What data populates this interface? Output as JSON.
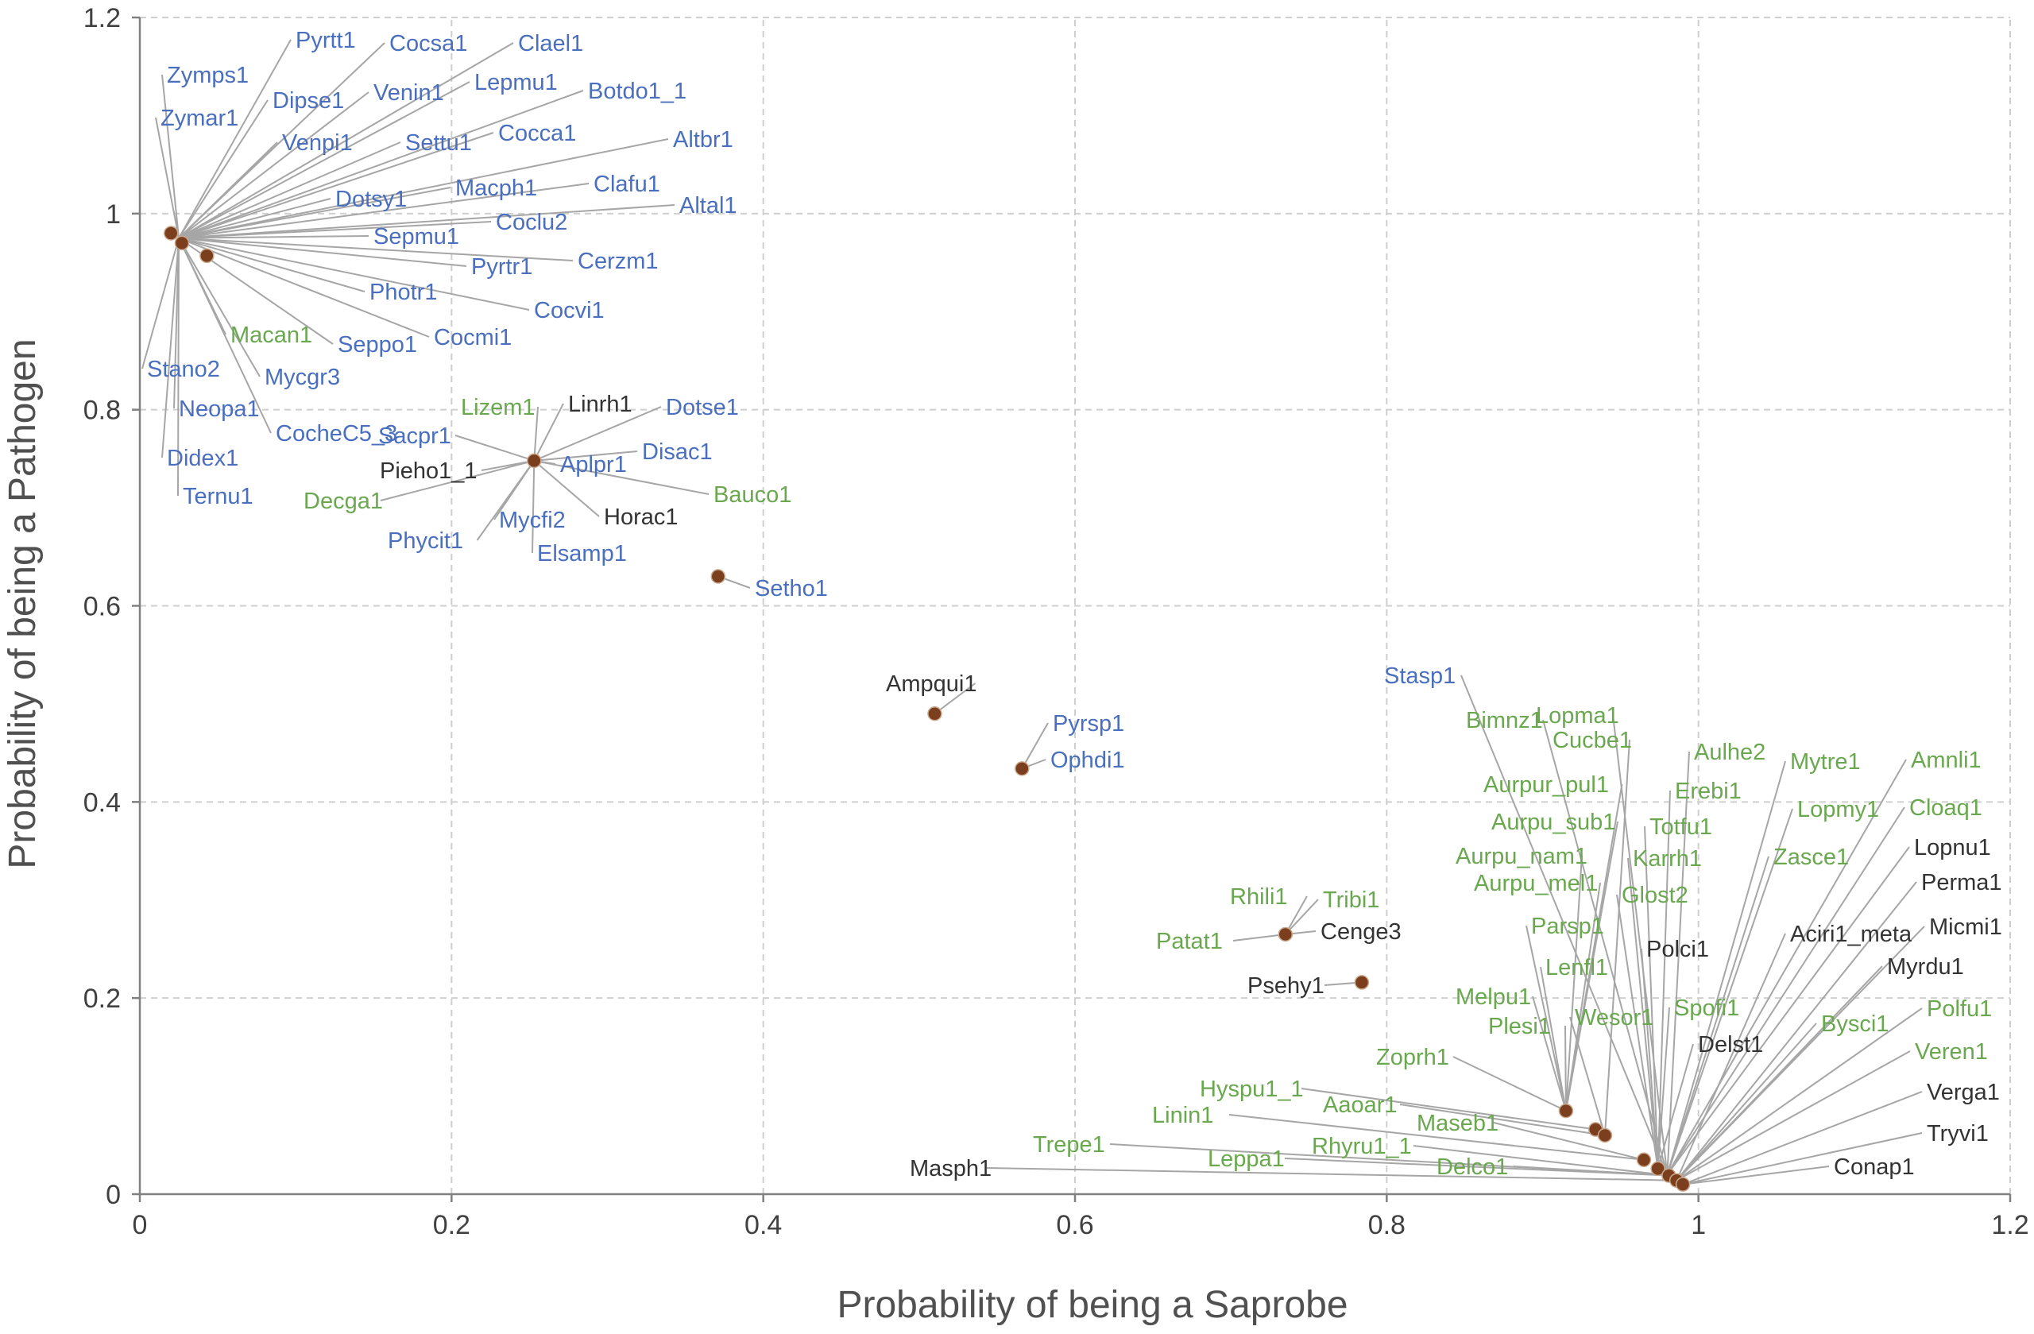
{
  "chart_data": {
    "type": "scatter",
    "xlabel": "Probability of being a Saprobe",
    "ylabel": "Probability of being a Pathogen",
    "xlim": [
      0,
      1.2
    ],
    "ylim": [
      0,
      1.2
    ],
    "xticks": [
      "0",
      "0.2",
      "0.4",
      "0.6",
      "0.8",
      "1",
      "1.2"
    ],
    "yticks": [
      "0",
      "0.2",
      "0.4",
      "0.6",
      "0.8",
      "1",
      "1.2"
    ],
    "grid": true,
    "marker_color": "#7b3f1d",
    "label_colors": {
      "pathogen": "#4a6fbf",
      "saprobe": "#6aa84f",
      "other": "#333333"
    },
    "points": [
      {
        "x": 0.02,
        "y": 0.98
      },
      {
        "x": 0.027,
        "y": 0.97
      },
      {
        "x": 0.043,
        "y": 0.957
      },
      {
        "x": 0.253,
        "y": 0.748
      },
      {
        "x": 0.371,
        "y": 0.63
      },
      {
        "x": 0.51,
        "y": 0.49
      },
      {
        "x": 0.566,
        "y": 0.434
      },
      {
        "x": 0.735,
        "y": 0.265
      },
      {
        "x": 0.784,
        "y": 0.216
      },
      {
        "x": 0.915,
        "y": 0.085
      },
      {
        "x": 0.934,
        "y": 0.066
      },
      {
        "x": 0.94,
        "y": 0.06
      },
      {
        "x": 0.965,
        "y": 0.035
      },
      {
        "x": 0.974,
        "y": 0.026
      },
      {
        "x": 0.981,
        "y": 0.019
      },
      {
        "x": 0.986,
        "y": 0.014
      },
      {
        "x": 0.99,
        "y": 0.01
      }
    ],
    "labels": [
      {
        "text": "Pyrtt1",
        "group": "pathogen",
        "x": 0.025,
        "y": 0.975
      },
      {
        "text": "Cocsa1",
        "group": "pathogen",
        "x": 0.025,
        "y": 0.975
      },
      {
        "text": "Clael1",
        "group": "pathogen",
        "x": 0.025,
        "y": 0.975
      },
      {
        "text": "Zymps1",
        "group": "pathogen",
        "x": 0.025,
        "y": 0.975
      },
      {
        "text": "Dipse1",
        "group": "pathogen",
        "x": 0.025,
        "y": 0.975
      },
      {
        "text": "Venin1",
        "group": "pathogen",
        "x": 0.025,
        "y": 0.975
      },
      {
        "text": "Lepmu1",
        "group": "pathogen",
        "x": 0.025,
        "y": 0.975
      },
      {
        "text": "Botdo1_1",
        "group": "pathogen",
        "x": 0.025,
        "y": 0.975
      },
      {
        "text": "Zymar1",
        "group": "pathogen",
        "x": 0.025,
        "y": 0.975
      },
      {
        "text": "Venpi1",
        "group": "pathogen",
        "x": 0.025,
        "y": 0.975
      },
      {
        "text": "Settu1",
        "group": "pathogen",
        "x": 0.025,
        "y": 0.975
      },
      {
        "text": "Cocca1",
        "group": "pathogen",
        "x": 0.025,
        "y": 0.975
      },
      {
        "text": "Altbr1",
        "group": "pathogen",
        "x": 0.025,
        "y": 0.975
      },
      {
        "text": "Macph1",
        "group": "pathogen",
        "x": 0.025,
        "y": 0.975
      },
      {
        "text": "Clafu1",
        "group": "pathogen",
        "x": 0.025,
        "y": 0.975
      },
      {
        "text": "Dotsy1",
        "group": "pathogen",
        "x": 0.025,
        "y": 0.975
      },
      {
        "text": "Altal1",
        "group": "pathogen",
        "x": 0.025,
        "y": 0.975
      },
      {
        "text": "Coclu2",
        "group": "pathogen",
        "x": 0.025,
        "y": 0.975
      },
      {
        "text": "Sepmu1",
        "group": "pathogen",
        "x": 0.025,
        "y": 0.975
      },
      {
        "text": "Pyrtr1",
        "group": "pathogen",
        "x": 0.025,
        "y": 0.975
      },
      {
        "text": "Cerzm1",
        "group": "pathogen",
        "x": 0.025,
        "y": 0.975
      },
      {
        "text": "Photr1",
        "group": "pathogen",
        "x": 0.025,
        "y": 0.975
      },
      {
        "text": "Cocvi1",
        "group": "pathogen",
        "x": 0.025,
        "y": 0.975
      },
      {
        "text": "Macan1",
        "group": "saprobe",
        "x": 0.025,
        "y": 0.975
      },
      {
        "text": "Seppo1",
        "group": "pathogen",
        "x": 0.025,
        "y": 0.975
      },
      {
        "text": "Cocmi1",
        "group": "pathogen",
        "x": 0.025,
        "y": 0.975
      },
      {
        "text": "Stano2",
        "group": "pathogen",
        "x": 0.025,
        "y": 0.975
      },
      {
        "text": "Mycgr3",
        "group": "pathogen",
        "x": 0.025,
        "y": 0.975
      },
      {
        "text": "Neopa1",
        "group": "pathogen",
        "x": 0.025,
        "y": 0.975
      },
      {
        "text": "CocheC5_3",
        "group": "pathogen",
        "x": 0.025,
        "y": 0.975
      },
      {
        "text": "Didex1",
        "group": "pathogen",
        "x": 0.025,
        "y": 0.975
      },
      {
        "text": "Ternu1",
        "group": "pathogen",
        "x": 0.025,
        "y": 0.975
      },
      {
        "text": "Lizem1",
        "group": "saprobe",
        "x": 0.253,
        "y": 0.748
      },
      {
        "text": "Linrh1",
        "group": "other",
        "x": 0.253,
        "y": 0.748
      },
      {
        "text": "Dotse1",
        "group": "pathogen",
        "x": 0.253,
        "y": 0.748
      },
      {
        "text": "Sacpr1",
        "group": "pathogen",
        "x": 0.253,
        "y": 0.748
      },
      {
        "text": "Disac1",
        "group": "pathogen",
        "x": 0.253,
        "y": 0.748
      },
      {
        "text": "Pieho1_1",
        "group": "other",
        "x": 0.253,
        "y": 0.748
      },
      {
        "text": "Aplpr1",
        "group": "pathogen",
        "x": 0.253,
        "y": 0.748
      },
      {
        "text": "Decga1",
        "group": "saprobe",
        "x": 0.253,
        "y": 0.748
      },
      {
        "text": "Bauco1",
        "group": "saprobe",
        "x": 0.253,
        "y": 0.748
      },
      {
        "text": "Mycfi2",
        "group": "pathogen",
        "x": 0.253,
        "y": 0.748
      },
      {
        "text": "Horac1",
        "group": "other",
        "x": 0.253,
        "y": 0.748
      },
      {
        "text": "Phycit1",
        "group": "pathogen",
        "x": 0.253,
        "y": 0.748
      },
      {
        "text": "Elsamp1",
        "group": "pathogen",
        "x": 0.253,
        "y": 0.748
      },
      {
        "text": "Setho1",
        "group": "pathogen",
        "x": 0.371,
        "y": 0.63
      },
      {
        "text": "Ampqui1",
        "group": "other",
        "x": 0.51,
        "y": 0.49
      },
      {
        "text": "Pyrsp1",
        "group": "pathogen",
        "x": 0.566,
        "y": 0.434
      },
      {
        "text": "Ophdi1",
        "group": "pathogen",
        "x": 0.566,
        "y": 0.434
      },
      {
        "text": "Rhili1",
        "group": "saprobe",
        "x": 0.735,
        "y": 0.265
      },
      {
        "text": "Tribi1",
        "group": "saprobe",
        "x": 0.735,
        "y": 0.265
      },
      {
        "text": "Patat1",
        "group": "saprobe",
        "x": 0.735,
        "y": 0.265
      },
      {
        "text": "Cenge3",
        "group": "other",
        "x": 0.735,
        "y": 0.265
      },
      {
        "text": "Psehy1",
        "group": "other",
        "x": 0.784,
        "y": 0.216
      },
      {
        "text": "Stasp1",
        "group": "pathogen",
        "x": 0.98,
        "y": 0.02
      },
      {
        "text": "Bimnz1",
        "group": "saprobe",
        "x": 0.98,
        "y": 0.02
      },
      {
        "text": "Lopma1",
        "group": "saprobe",
        "x": 0.98,
        "y": 0.02
      },
      {
        "text": "Cucbe1",
        "group": "saprobe",
        "x": 0.94,
        "y": 0.06
      },
      {
        "text": "Aulhe2",
        "group": "saprobe",
        "x": 0.98,
        "y": 0.02
      },
      {
        "text": "Mytre1",
        "group": "saprobe",
        "x": 0.98,
        "y": 0.02
      },
      {
        "text": "Amnli1",
        "group": "saprobe",
        "x": 0.98,
        "y": 0.02
      },
      {
        "text": "Aurpur_pul1",
        "group": "saprobe",
        "x": 0.915,
        "y": 0.085
      },
      {
        "text": "Erebi1",
        "group": "saprobe",
        "x": 0.974,
        "y": 0.026
      },
      {
        "text": "Lopmy1",
        "group": "saprobe",
        "x": 0.98,
        "y": 0.02
      },
      {
        "text": "Cloaq1",
        "group": "saprobe",
        "x": 0.98,
        "y": 0.02
      },
      {
        "text": "Aurpu_sub1",
        "group": "saprobe",
        "x": 0.915,
        "y": 0.085
      },
      {
        "text": "Totfu1",
        "group": "saprobe",
        "x": 0.974,
        "y": 0.026
      },
      {
        "text": "Lopnu1",
        "group": "other",
        "x": 0.98,
        "y": 0.02
      },
      {
        "text": "Aurpu_nam1",
        "group": "saprobe",
        "x": 0.915,
        "y": 0.085
      },
      {
        "text": "Karrh1",
        "group": "saprobe",
        "x": 0.974,
        "y": 0.026
      },
      {
        "text": "Zasce1",
        "group": "saprobe",
        "x": 0.98,
        "y": 0.02
      },
      {
        "text": "Aurpu_mel1",
        "group": "saprobe",
        "x": 0.915,
        "y": 0.085
      },
      {
        "text": "Glost2",
        "group": "saprobe",
        "x": 0.974,
        "y": 0.026
      },
      {
        "text": "Perma1",
        "group": "other",
        "x": 0.986,
        "y": 0.014
      },
      {
        "text": "Parsp1",
        "group": "saprobe",
        "x": 0.915,
        "y": 0.085
      },
      {
        "text": "Aciri1_meta",
        "group": "other",
        "x": 0.986,
        "y": 0.014
      },
      {
        "text": "Micmi1",
        "group": "other",
        "x": 0.986,
        "y": 0.014
      },
      {
        "text": "Polci1",
        "group": "other",
        "x": 0.974,
        "y": 0.026
      },
      {
        "text": "Myrdu1",
        "group": "other",
        "x": 0.986,
        "y": 0.014
      },
      {
        "text": "Lenfl1",
        "group": "saprobe",
        "x": 0.915,
        "y": 0.085
      },
      {
        "text": "Melpu1",
        "group": "saprobe",
        "x": 0.915,
        "y": 0.085
      },
      {
        "text": "Wesor1",
        "group": "saprobe",
        "x": 0.94,
        "y": 0.06
      },
      {
        "text": "Spofi1",
        "group": "saprobe",
        "x": 0.974,
        "y": 0.026
      },
      {
        "text": "Polfu1",
        "group": "saprobe",
        "x": 0.986,
        "y": 0.014
      },
      {
        "text": "Plesi1",
        "group": "saprobe",
        "x": 0.915,
        "y": 0.085
      },
      {
        "text": "Bysci1",
        "group": "saprobe",
        "x": 0.986,
        "y": 0.014
      },
      {
        "text": "Delst1",
        "group": "other",
        "x": 0.974,
        "y": 0.026
      },
      {
        "text": "Veren1",
        "group": "saprobe",
        "x": 0.986,
        "y": 0.014
      },
      {
        "text": "Zoprh1",
        "group": "saprobe",
        "x": 0.915,
        "y": 0.085
      },
      {
        "text": "Hyspu1_1",
        "group": "saprobe",
        "x": 0.934,
        "y": 0.066
      },
      {
        "text": "Verga1",
        "group": "other",
        "x": 0.99,
        "y": 0.01
      },
      {
        "text": "Aaoar1",
        "group": "saprobe",
        "x": 0.94,
        "y": 0.06
      },
      {
        "text": "Linin1",
        "group": "saprobe",
        "x": 0.965,
        "y": 0.035
      },
      {
        "text": "Maseb1",
        "group": "saprobe",
        "x": 0.965,
        "y": 0.035
      },
      {
        "text": "Tryvi1",
        "group": "other",
        "x": 0.99,
        "y": 0.01
      },
      {
        "text": "Trepe1",
        "group": "saprobe",
        "x": 0.981,
        "y": 0.019
      },
      {
        "text": "Rhyru1_1",
        "group": "saprobe",
        "x": 0.981,
        "y": 0.019
      },
      {
        "text": "Conap1",
        "group": "other",
        "x": 0.99,
        "y": 0.01
      },
      {
        "text": "Leppa1",
        "group": "saprobe",
        "x": 0.981,
        "y": 0.019
      },
      {
        "text": "Delco1",
        "group": "saprobe",
        "x": 0.981,
        "y": 0.019
      },
      {
        "text": "Masph1",
        "group": "other",
        "x": 0.986,
        "y": 0.014
      }
    ]
  }
}
